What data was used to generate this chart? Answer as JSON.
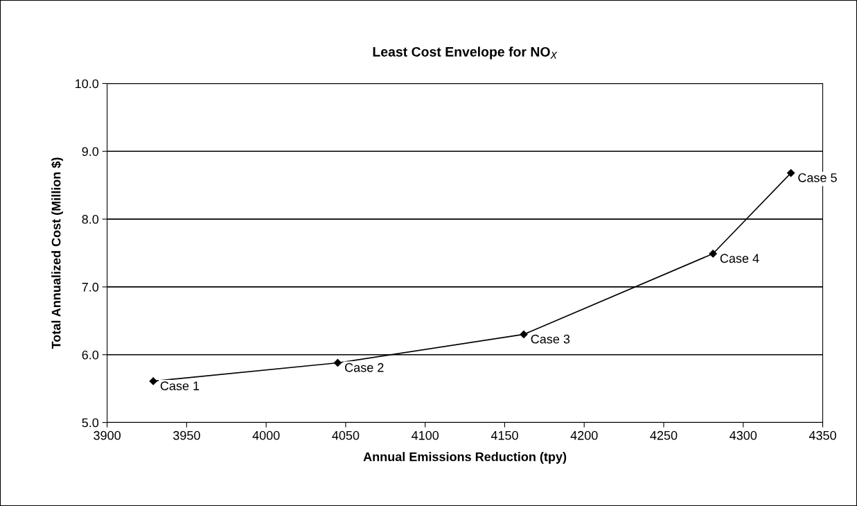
{
  "chart_data": {
    "type": "line",
    "title": "Least Cost Envelope for NO$_{X}$",
    "xlabel": "Annual Emissions Reduction (tpy)",
    "ylabel": "Total Annualized Cost (Million $)",
    "x": [
      3929,
      4045,
      4162,
      4281,
      4330
    ],
    "series": [
      {
        "color": "#000000",
        "values": [
          5.61,
          5.88,
          6.3,
          7.49,
          8.68
        ]
      }
    ],
    "annotations": [
      {
        "text": "Case 1",
        "x": 3929,
        "y": 5.61
      },
      {
        "text": "Case 2",
        "x": 4045,
        "y": 5.88
      },
      {
        "text": "Case 3",
        "x": 4162,
        "y": 6.3
      },
      {
        "text": "Case 4",
        "x": 4281,
        "y": 7.49
      },
      {
        "text": "Case 5",
        "x": 4330,
        "y": 8.68
      }
    ],
    "xlim": [
      3900,
      4350
    ],
    "xticks": [
      3900,
      3950,
      4000,
      4050,
      4100,
      4150,
      4200,
      4250,
      4300,
      4350
    ],
    "ylim": [
      5.0,
      10.0
    ],
    "yticks": [
      {
        "value": 5,
        "label": "5.0"
      },
      {
        "value": 6,
        "label": "6.0"
      },
      {
        "value": 7,
        "label": "7.0"
      },
      {
        "value": 8,
        "label": "8.0"
      },
      {
        "value": 9,
        "label": "9.0"
      },
      {
        "value": 10,
        "label": "10.0"
      }
    ],
    "grid": "y",
    "marker": "diamond",
    "line_style": "solid",
    "legend": false
  }
}
